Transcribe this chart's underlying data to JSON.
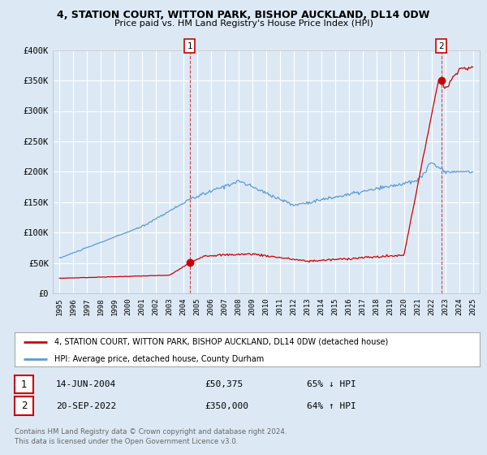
{
  "title": "4, STATION COURT, WITTON PARK, BISHOP AUCKLAND, DL14 0DW",
  "subtitle": "Price paid vs. HM Land Registry's House Price Index (HPI)",
  "background_color": "#dce9f5",
  "plot_bg_color": "#dce9f5",
  "ylim": [
    0,
    400000
  ],
  "yticks": [
    0,
    50000,
    100000,
    150000,
    200000,
    250000,
    300000,
    350000,
    400000
  ],
  "ytick_labels": [
    "£0",
    "£50K",
    "£100K",
    "£150K",
    "£200K",
    "£250K",
    "£300K",
    "£350K",
    "£400K"
  ],
  "sale1_date_label": "14-JUN-2004",
  "sale1_price": 50375,
  "sale1_year": 2004.45,
  "sale1_label": "£50,375",
  "sale1_hpi": "65% ↓ HPI",
  "sale2_date_label": "20-SEP-2022",
  "sale2_price": 350000,
  "sale2_year": 2022.72,
  "sale2_label": "£350,000",
  "sale2_hpi": "64% ↑ HPI",
  "red_line_color": "#cc0000",
  "blue_line_color": "#5b9bd5",
  "legend_label_red": "4, STATION COURT, WITTON PARK, BISHOP AUCKLAND, DL14 0DW (detached house)",
  "legend_label_blue": "HPI: Average price, detached house, County Durham",
  "footer_line1": "Contains HM Land Registry data © Crown copyright and database right 2024.",
  "footer_line2": "This data is licensed under the Open Government Licence v3.0.",
  "xlim_left": 1994.5,
  "xlim_right": 2025.5
}
